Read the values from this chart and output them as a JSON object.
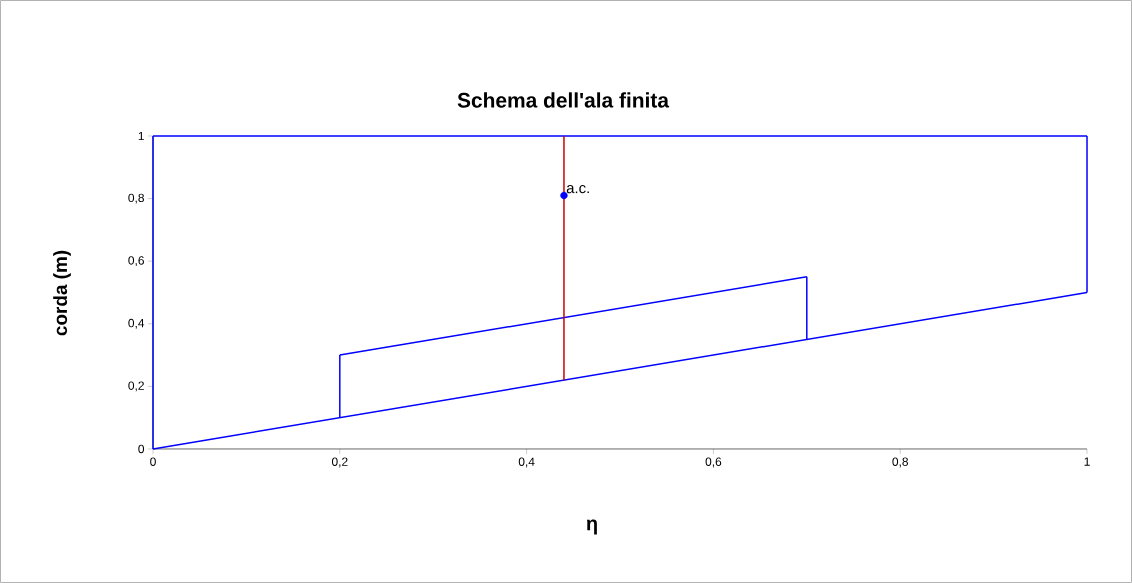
{
  "chart_data": {
    "type": "line",
    "title": "Schema dell'ala finita",
    "xlabel": "η",
    "ylabel": "corda  (m)",
    "series": [
      {
        "color": "#0000ff",
        "marker": "none",
        "x": [
          0,
          1
        ],
        "values": [
          0,
          0.5
        ]
      },
      {
        "color": "#0000ff",
        "marker": "none",
        "x": [
          0,
          0
        ],
        "values": [
          0,
          1
        ]
      },
      {
        "color": "#0000ff",
        "marker": "none",
        "x": [
          0,
          1
        ],
        "values": [
          1,
          1
        ]
      },
      {
        "color": "#0000ff",
        "marker": "none",
        "x": [
          1,
          1
        ],
        "values": [
          1,
          0.5
        ]
      },
      {
        "color": "#0000ff",
        "marker": "none",
        "x": [
          0.2,
          0.2
        ],
        "values": [
          0.1,
          0.3
        ]
      },
      {
        "color": "#0000ff",
        "marker": "none",
        "x": [
          0.2,
          0.7
        ],
        "values": [
          0.3,
          0.55
        ]
      },
      {
        "color": "#0000ff",
        "marker": "none",
        "x": [
          0.7,
          0.7
        ],
        "values": [
          0.55,
          0.35
        ]
      },
      {
        "color": "#cc0000",
        "marker": "none",
        "x": [
          0.44,
          0.44
        ],
        "values": [
          0.22,
          1
        ]
      },
      {
        "type": "scatter",
        "color": "#0000ff",
        "marker": "circle",
        "x": [
          0.44
        ],
        "values": [
          0.81
        ]
      }
    ],
    "annotations": [
      {
        "text": "a.c.",
        "x": 0.44,
        "y": 0.81
      }
    ],
    "xlim": [
      0,
      1
    ],
    "ylim": [
      0,
      1
    ],
    "xticks": [
      0,
      {
        "value": 0.2,
        "label": "0,2"
      },
      {
        "value": 0.4,
        "label": "0,4"
      },
      {
        "value": 0.6,
        "label": "0,6"
      },
      {
        "value": 0.8,
        "label": "0,8"
      },
      1
    ],
    "yticks": [
      0,
      {
        "value": 0.2,
        "label": "0,2"
      },
      {
        "value": 0.4,
        "label": "0,4"
      },
      {
        "value": 0.6,
        "label": "0,6"
      },
      {
        "value": 0.8,
        "label": "0,8"
      },
      1
    ],
    "grid": false
  }
}
